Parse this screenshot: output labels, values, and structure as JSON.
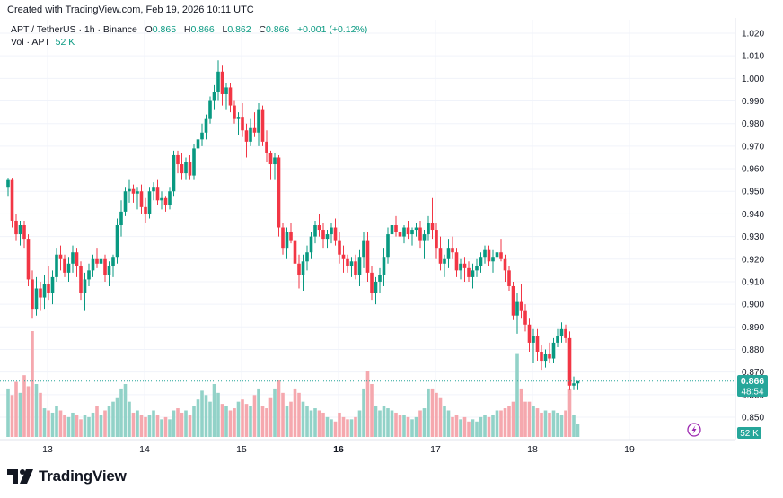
{
  "header": {
    "created": "Created with TradingView.com, Feb 19, 2026 10:11 UTC"
  },
  "legend": {
    "symbol": "APT / TetherUS · 1h · Binance",
    "o_label": "O",
    "o_value": "0.865",
    "h_label": "H",
    "h_value": "0.866",
    "l_label": "L",
    "l_value": "0.862",
    "c_label": "C",
    "c_value": "0.866",
    "change": "+0.001 (+0.12%)",
    "vol_label": "Vol · APT",
    "vol_value": "52 K"
  },
  "price_tag": {
    "price": "0.866",
    "countdown": "48:54"
  },
  "volume_tag": "52 K",
  "brand": "TradingView",
  "colors": {
    "up": "#089981",
    "down": "#f23645",
    "up_vol": "#92d2c8",
    "down_vol": "#f5a8ae",
    "grid": "#f0f3fa",
    "last_line": "#26a69a"
  },
  "icons": {
    "flash": "lightning-icon",
    "logo": "tradingview-logo-icon"
  },
  "chart_data": {
    "type": "candlestick",
    "timeframe": "1h",
    "y_axis": {
      "ticks": [
        "1.020",
        "1.010",
        "1.000",
        "0.990",
        "0.980",
        "0.970",
        "0.960",
        "0.950",
        "0.940",
        "0.930",
        "0.920",
        "0.910",
        "0.900",
        "0.890",
        "0.880",
        "0.870",
        "0.860",
        "0.850"
      ],
      "range": [
        0.8455,
        1.0235
      ]
    },
    "x_axis": {
      "ticks": [
        {
          "label": "13",
          "i": 10
        },
        {
          "label": "14",
          "i": 34
        },
        {
          "label": "15",
          "i": 58
        },
        {
          "label": "16",
          "i": 82,
          "bold": true
        },
        {
          "label": "17",
          "i": 106
        },
        {
          "label": "18",
          "i": 130
        },
        {
          "label": "19",
          "i": 154
        }
      ]
    },
    "last_price": 0.866,
    "candles": [
      [
        0.952,
        0.956,
        0.948,
        0.955,
        22
      ],
      [
        0.955,
        0.956,
        0.934,
        0.937,
        19
      ],
      [
        0.937,
        0.94,
        0.928,
        0.931,
        25
      ],
      [
        0.931,
        0.937,
        0.926,
        0.935,
        20
      ],
      [
        0.935,
        0.937,
        0.925,
        0.929,
        28
      ],
      [
        0.929,
        0.931,
        0.908,
        0.911,
        23
      ],
      [
        0.911,
        0.915,
        0.894,
        0.898,
        48
      ],
      [
        0.898,
        0.912,
        0.895,
        0.907,
        24
      ],
      [
        0.907,
        0.91,
        0.897,
        0.903,
        20
      ],
      [
        0.903,
        0.913,
        0.898,
        0.909,
        13
      ],
      [
        0.909,
        0.917,
        0.902,
        0.905,
        12
      ],
      [
        0.905,
        0.915,
        0.9,
        0.912,
        11
      ],
      [
        0.912,
        0.925,
        0.91,
        0.922,
        14
      ],
      [
        0.922,
        0.926,
        0.915,
        0.92,
        12
      ],
      [
        0.92,
        0.922,
        0.912,
        0.914,
        10
      ],
      [
        0.914,
        0.921,
        0.91,
        0.918,
        9
      ],
      [
        0.918,
        0.926,
        0.914,
        0.923,
        11
      ],
      [
        0.923,
        0.925,
        0.912,
        0.917,
        10
      ],
      [
        0.917,
        0.919,
        0.902,
        0.905,
        8
      ],
      [
        0.905,
        0.914,
        0.897,
        0.911,
        10
      ],
      [
        0.911,
        0.918,
        0.908,
        0.915,
        9
      ],
      [
        0.915,
        0.922,
        0.912,
        0.92,
        11
      ],
      [
        0.92,
        0.925,
        0.916,
        0.918,
        14
      ],
      [
        0.918,
        0.922,
        0.912,
        0.92,
        10
      ],
      [
        0.92,
        0.922,
        0.91,
        0.913,
        12
      ],
      [
        0.913,
        0.919,
        0.908,
        0.917,
        14
      ],
      [
        0.917,
        0.922,
        0.912,
        0.921,
        16
      ],
      [
        0.921,
        0.938,
        0.918,
        0.935,
        18
      ],
      [
        0.935,
        0.946,
        0.93,
        0.941,
        22
      ],
      [
        0.941,
        0.952,
        0.939,
        0.95,
        24
      ],
      [
        0.95,
        0.955,
        0.945,
        0.951,
        16
      ],
      [
        0.951,
        0.953,
        0.945,
        0.949,
        11
      ],
      [
        0.949,
        0.952,
        0.942,
        0.95,
        12
      ],
      [
        0.95,
        0.953,
        0.94,
        0.943,
        10
      ],
      [
        0.943,
        0.947,
        0.936,
        0.94,
        9
      ],
      [
        0.94,
        0.952,
        0.938,
        0.95,
        10
      ],
      [
        0.95,
        0.954,
        0.946,
        0.952,
        12
      ],
      [
        0.952,
        0.955,
        0.944,
        0.946,
        10
      ],
      [
        0.946,
        0.95,
        0.942,
        0.947,
        8
      ],
      [
        0.947,
        0.948,
        0.941,
        0.944,
        9
      ],
      [
        0.944,
        0.952,
        0.942,
        0.95,
        8
      ],
      [
        0.95,
        0.968,
        0.948,
        0.966,
        12
      ],
      [
        0.966,
        0.968,
        0.958,
        0.962,
        13
      ],
      [
        0.962,
        0.967,
        0.955,
        0.958,
        11
      ],
      [
        0.958,
        0.965,
        0.955,
        0.963,
        12
      ],
      [
        0.963,
        0.966,
        0.955,
        0.957,
        10
      ],
      [
        0.957,
        0.971,
        0.955,
        0.969,
        14
      ],
      [
        0.969,
        0.977,
        0.965,
        0.973,
        17
      ],
      [
        0.973,
        0.98,
        0.97,
        0.976,
        21
      ],
      [
        0.976,
        0.984,
        0.973,
        0.982,
        19
      ],
      [
        0.982,
        0.992,
        0.98,
        0.99,
        16
      ],
      [
        0.99,
        0.997,
        0.986,
        0.994,
        24
      ],
      [
        0.994,
        1.008,
        0.99,
        1.003,
        20
      ],
      [
        1.003,
        1.006,
        0.988,
        0.993,
        15
      ],
      [
        0.993,
        0.998,
        0.986,
        0.996,
        14
      ],
      [
        0.996,
        0.998,
        0.985,
        0.988,
        12
      ],
      [
        0.988,
        0.99,
        0.98,
        0.982,
        13
      ],
      [
        0.982,
        0.985,
        0.975,
        0.983,
        16
      ],
      [
        0.983,
        0.989,
        0.974,
        0.977,
        17
      ],
      [
        0.977,
        0.98,
        0.965,
        0.972,
        15
      ],
      [
        0.972,
        0.982,
        0.97,
        0.978,
        14
      ],
      [
        0.978,
        0.985,
        0.974,
        0.976,
        19
      ],
      [
        0.976,
        0.989,
        0.97,
        0.986,
        22
      ],
      [
        0.986,
        0.988,
        0.97,
        0.972,
        14
      ],
      [
        0.972,
        0.977,
        0.963,
        0.967,
        13
      ],
      [
        0.967,
        0.968,
        0.955,
        0.962,
        18
      ],
      [
        0.962,
        0.967,
        0.955,
        0.965,
        22
      ],
      [
        0.965,
        0.966,
        0.93,
        0.934,
        26
      ],
      [
        0.934,
        0.936,
        0.922,
        0.925,
        20
      ],
      [
        0.925,
        0.934,
        0.92,
        0.932,
        14
      ],
      [
        0.932,
        0.936,
        0.927,
        0.928,
        16
      ],
      [
        0.928,
        0.93,
        0.912,
        0.918,
        22
      ],
      [
        0.918,
        0.922,
        0.907,
        0.913,
        20
      ],
      [
        0.913,
        0.922,
        0.906,
        0.919,
        16
      ],
      [
        0.919,
        0.926,
        0.915,
        0.923,
        14
      ],
      [
        0.923,
        0.932,
        0.92,
        0.93,
        12
      ],
      [
        0.93,
        0.937,
        0.927,
        0.935,
        13
      ],
      [
        0.935,
        0.94,
        0.93,
        0.933,
        12
      ],
      [
        0.933,
        0.936,
        0.925,
        0.929,
        11
      ],
      [
        0.929,
        0.933,
        0.925,
        0.931,
        9
      ],
      [
        0.931,
        0.936,
        0.927,
        0.934,
        8
      ],
      [
        0.934,
        0.938,
        0.926,
        0.928,
        7
      ],
      [
        0.928,
        0.932,
        0.918,
        0.922,
        11
      ],
      [
        0.922,
        0.926,
        0.914,
        0.92,
        9
      ],
      [
        0.92,
        0.922,
        0.914,
        0.917,
        8
      ],
      [
        0.917,
        0.921,
        0.912,
        0.919,
        8
      ],
      [
        0.919,
        0.922,
        0.911,
        0.913,
        9
      ],
      [
        0.913,
        0.924,
        0.908,
        0.921,
        12
      ],
      [
        0.921,
        0.932,
        0.916,
        0.928,
        22
      ],
      [
        0.928,
        0.932,
        0.91,
        0.914,
        30
      ],
      [
        0.914,
        0.917,
        0.902,
        0.905,
        24
      ],
      [
        0.905,
        0.912,
        0.9,
        0.91,
        14
      ],
      [
        0.91,
        0.916,
        0.905,
        0.913,
        12
      ],
      [
        0.913,
        0.925,
        0.908,
        0.921,
        14
      ],
      [
        0.921,
        0.934,
        0.918,
        0.931,
        13
      ],
      [
        0.931,
        0.938,
        0.926,
        0.935,
        12
      ],
      [
        0.935,
        0.939,
        0.93,
        0.932,
        11
      ],
      [
        0.932,
        0.936,
        0.928,
        0.93,
        10
      ],
      [
        0.93,
        0.935,
        0.927,
        0.934,
        10
      ],
      [
        0.934,
        0.937,
        0.929,
        0.931,
        9
      ],
      [
        0.931,
        0.934,
        0.926,
        0.933,
        8
      ],
      [
        0.933,
        0.936,
        0.93,
        0.934,
        9
      ],
      [
        0.934,
        0.937,
        0.925,
        0.928,
        12
      ],
      [
        0.928,
        0.933,
        0.92,
        0.931,
        13
      ],
      [
        0.931,
        0.939,
        0.928,
        0.936,
        22
      ],
      [
        0.936,
        0.947,
        0.929,
        0.933,
        22
      ],
      [
        0.933,
        0.936,
        0.92,
        0.925,
        20
      ],
      [
        0.925,
        0.93,
        0.915,
        0.918,
        18
      ],
      [
        0.918,
        0.922,
        0.912,
        0.92,
        14
      ],
      [
        0.92,
        0.929,
        0.916,
        0.925,
        12
      ],
      [
        0.925,
        0.93,
        0.92,
        0.923,
        9
      ],
      [
        0.923,
        0.925,
        0.912,
        0.915,
        10
      ],
      [
        0.915,
        0.92,
        0.911,
        0.918,
        8
      ],
      [
        0.918,
        0.921,
        0.91,
        0.916,
        9
      ],
      [
        0.916,
        0.919,
        0.91,
        0.912,
        7
      ],
      [
        0.912,
        0.918,
        0.907,
        0.915,
        8
      ],
      [
        0.915,
        0.92,
        0.912,
        0.917,
        7
      ],
      [
        0.917,
        0.923,
        0.914,
        0.921,
        9
      ],
      [
        0.921,
        0.926,
        0.918,
        0.924,
        10
      ],
      [
        0.924,
        0.926,
        0.917,
        0.919,
        9
      ],
      [
        0.919,
        0.924,
        0.914,
        0.921,
        10
      ],
      [
        0.921,
        0.926,
        0.918,
        0.923,
        12
      ],
      [
        0.923,
        0.929,
        0.919,
        0.92,
        12
      ],
      [
        0.92,
        0.922,
        0.91,
        0.915,
        13
      ],
      [
        0.915,
        0.917,
        0.906,
        0.908,
        14
      ],
      [
        0.908,
        0.91,
        0.893,
        0.895,
        16
      ],
      [
        0.895,
        0.905,
        0.887,
        0.901,
        38
      ],
      [
        0.901,
        0.909,
        0.894,
        0.897,
        22
      ],
      [
        0.897,
        0.9,
        0.888,
        0.891,
        16
      ],
      [
        0.891,
        0.894,
        0.879,
        0.883,
        16
      ],
      [
        0.883,
        0.889,
        0.874,
        0.886,
        14
      ],
      [
        0.886,
        0.889,
        0.875,
        0.879,
        13
      ],
      [
        0.879,
        0.882,
        0.871,
        0.875,
        11
      ],
      [
        0.875,
        0.88,
        0.872,
        0.878,
        12
      ],
      [
        0.878,
        0.883,
        0.874,
        0.876,
        11
      ],
      [
        0.876,
        0.885,
        0.874,
        0.883,
        12
      ],
      [
        0.883,
        0.889,
        0.881,
        0.886,
        11
      ],
      [
        0.886,
        0.892,
        0.883,
        0.889,
        10
      ],
      [
        0.889,
        0.891,
        0.883,
        0.885,
        12
      ],
      [
        0.885,
        0.888,
        0.862,
        0.864,
        22
      ],
      [
        0.864,
        0.868,
        0.862,
        0.865,
        10
      ],
      [
        0.865,
        0.866,
        0.862,
        0.866,
        6
      ]
    ]
  }
}
